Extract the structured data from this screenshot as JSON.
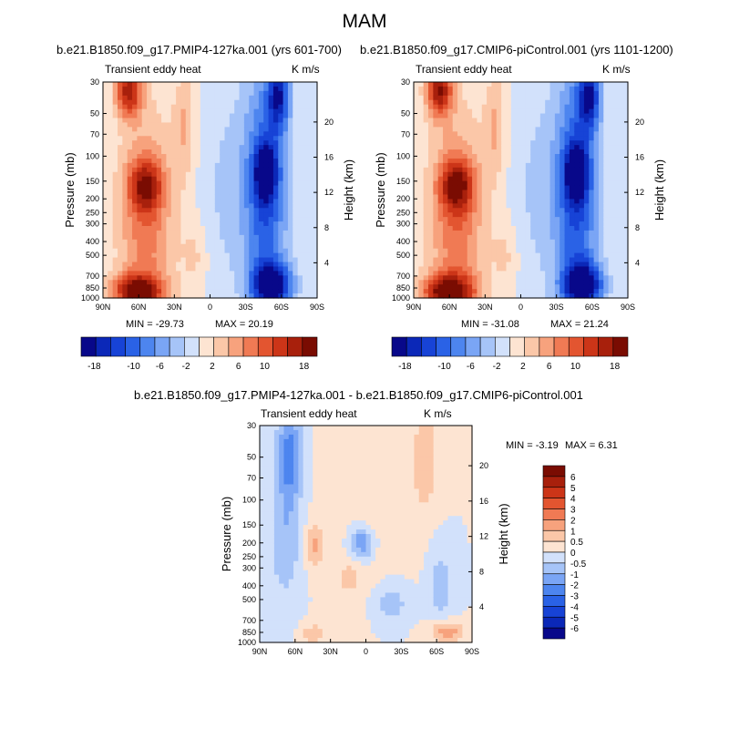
{
  "page_title": "MAM",
  "chart_data": [
    {
      "type": "heatmap",
      "title": "b.e21.B1850.f09_g17.PMIP4-127ka.001 (yrs 601-700)",
      "left_string": "Transient eddy heat",
      "right_string": "K m/s",
      "xlabel": "",
      "ylabel": "Pressure (mb)",
      "ylabel_right": "Height (km)",
      "x_ticks": [
        "90N",
        "60N",
        "30N",
        "0",
        "30S",
        "60S",
        "90S"
      ],
      "y_ticks": [
        30,
        50,
        70,
        100,
        150,
        200,
        250,
        300,
        400,
        500,
        700,
        850,
        1000
      ],
      "y_scale": "log",
      "height_ticks": [
        4,
        8,
        12,
        16,
        20
      ],
      "min_label": "MIN = -29.73",
      "max_label": "MAX = 20.19",
      "colorbar_levels": [
        -20,
        -18,
        -16,
        -14,
        -12,
        -10,
        -8,
        -6,
        -4,
        -2,
        0,
        2,
        4,
        6,
        8,
        10,
        12,
        14,
        16,
        18,
        20
      ],
      "colorbar_labels": [
        "-18",
        "-10",
        "-6",
        "-2",
        "2",
        "6",
        "10",
        "18"
      ],
      "colorbar_orientation": "horizontal"
    },
    {
      "type": "heatmap",
      "title": "b.e21.B1850.f09_g17.CMIP6-piControl.001 (yrs 1101-1200)",
      "left_string": "Transient eddy heat",
      "right_string": "K m/s",
      "xlabel": "",
      "ylabel": "Pressure (mb)",
      "ylabel_right": "Height (km)",
      "x_ticks": [
        "90N",
        "60N",
        "30N",
        "0",
        "30S",
        "60S",
        "90S"
      ],
      "y_ticks": [
        30,
        50,
        70,
        100,
        150,
        200,
        250,
        300,
        400,
        500,
        700,
        850,
        1000
      ],
      "y_scale": "log",
      "height_ticks": [
        4,
        8,
        12,
        16,
        20
      ],
      "min_label": "MIN = -31.08",
      "max_label": "MAX = 21.24",
      "colorbar_levels": [
        -20,
        -18,
        -16,
        -14,
        -12,
        -10,
        -8,
        -6,
        -4,
        -2,
        0,
        2,
        4,
        6,
        8,
        10,
        12,
        14,
        16,
        18,
        20
      ],
      "colorbar_labels": [
        "-18",
        "-10",
        "-6",
        "-2",
        "2",
        "6",
        "10",
        "18"
      ],
      "colorbar_orientation": "horizontal"
    },
    {
      "type": "heatmap",
      "title": "b.e21.B1850.f09_g17.PMIP4-127ka.001 - b.e21.B1850.f09_g17.CMIP6-piControl.001",
      "left_string": "Transient eddy heat",
      "right_string": "K m/s",
      "xlabel": "",
      "ylabel": "Pressure (mb)",
      "ylabel_right": "Height (km)",
      "x_ticks": [
        "90N",
        "60N",
        "30N",
        "0",
        "30S",
        "60S",
        "90S"
      ],
      "y_ticks": [
        30,
        50,
        70,
        100,
        150,
        200,
        250,
        300,
        400,
        500,
        700,
        850,
        1000
      ],
      "y_scale": "log",
      "height_ticks": [
        4,
        8,
        12,
        16,
        20
      ],
      "min_label": "MIN = -3.19",
      "max_label": "MAX =  6.31",
      "colorbar_levels": [
        -7,
        -6,
        -5,
        -4,
        -3,
        -2,
        -1,
        -0.5,
        0,
        0.5,
        1,
        2,
        3,
        4,
        5,
        6,
        7
      ],
      "colorbar_labels": [
        "6",
        "5",
        "4",
        "3",
        "2",
        "1",
        "0.5",
        "0",
        "-0.5",
        "-1",
        "-2",
        "-3",
        "-4",
        "-5",
        "-6"
      ],
      "colorbar_orientation": "vertical"
    }
  ],
  "colors": {
    "palette_16": [
      "#08088a",
      "#0b28b8",
      "#1743d6",
      "#2a62e6",
      "#4d85ef",
      "#7aa5f5",
      "#a6c4f8",
      "#d2e1fb",
      "#fde4d2",
      "#fbc7a8",
      "#f7a27d",
      "#f07a54",
      "#e35530",
      "#cc3518",
      "#a8200c",
      "#7a0c02"
    ],
    "palette_diff": [
      "#08088a",
      "#0b28b8",
      "#1743d6",
      "#2a62e6",
      "#4d85ef",
      "#7aa5f5",
      "#a6c4f8",
      "#d2e1fb",
      "#fde4d2",
      "#fbc7a8",
      "#f7a27d",
      "#f07a54",
      "#e35530",
      "#cc3518",
      "#a8200c",
      "#7a0c02"
    ]
  }
}
